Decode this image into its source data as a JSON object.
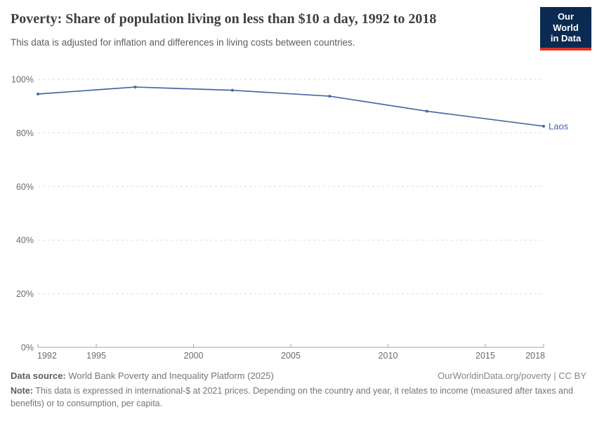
{
  "header": {
    "title": "Poverty: Share of population living on less than $10 a day, 1992 to 2018",
    "subtitle": "This data is adjusted for inflation and differences in living costs between countries.",
    "logo": {
      "line1": "Our World",
      "line2": "in Data"
    }
  },
  "colors": {
    "series_blue": "#4668a2",
    "logo_bg": "#0b2a51",
    "logo_stripe": "#dc352b",
    "gridline": "#dcdcdc",
    "axis": "#a3a3a3",
    "tick_text": "#6b6b6b",
    "title_text": "#3f3f3f",
    "subtitle_text": "#5e5e5e"
  },
  "chart_data": {
    "type": "line",
    "title": "Poverty: Share of population living on less than $10 a day, 1992 to 2018",
    "x": [
      1992,
      1997,
      2002,
      2007,
      2012,
      2018
    ],
    "series": [
      {
        "name": "Laos",
        "values": [
          94.5,
          97.1,
          95.9,
          93.7,
          88.1,
          82.5
        ]
      }
    ],
    "xlabel": "",
    "ylabel": "",
    "xlim": [
      1992,
      2018
    ],
    "ylim": [
      0,
      100
    ],
    "xticks": [
      1992,
      1995,
      2000,
      2005,
      2010,
      2015,
      2018
    ],
    "yticks": [
      0,
      20,
      40,
      60,
      80,
      100
    ],
    "ytick_suffix": "%",
    "grid": "horizontal-dashed",
    "legend": "inline-end-label"
  },
  "footer": {
    "source_label": "Data source:",
    "source_value": " World Bank Poverty and Inequality Platform (2025)",
    "attribution": "OurWorldinData.org/poverty | CC BY",
    "note_label": "Note:",
    "note_value": " This data is expressed in international-$ at 2021 prices. Depending on the country and year, it relates to income (measured after taxes and benefits) or to consumption, per capita."
  }
}
